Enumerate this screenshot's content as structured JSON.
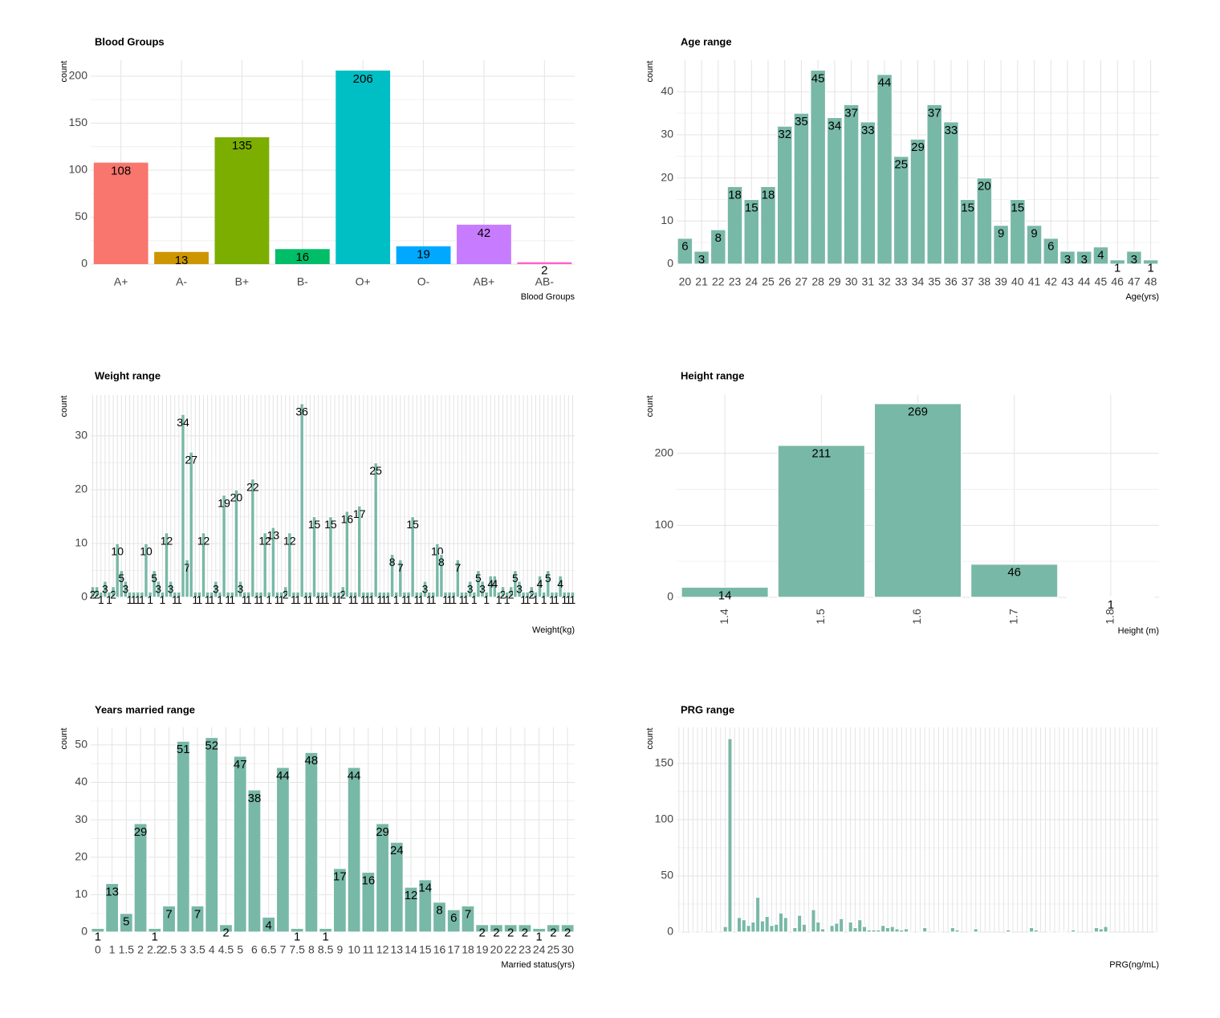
{
  "chart_data": [
    {
      "type": "bar",
      "title": "Blood Groups",
      "x_label": "Blood Groups",
      "y_label": "count",
      "categories": [
        "A+",
        "A-",
        "B+",
        "B-",
        "O+",
        "O-",
        "AB+",
        "AB-"
      ],
      "values": [
        108,
        13,
        135,
        16,
        206,
        19,
        42,
        2
      ],
      "colors": [
        "#F8766D",
        "#CD9600",
        "#7CAE00",
        "#00BE67",
        "#00BFC4",
        "#00A9FF",
        "#C77CFF",
        "#FF61CC"
      ],
      "ylim": [
        0,
        217
      ],
      "yticks": [
        0,
        50,
        100,
        150,
        200
      ],
      "grid": true
    },
    {
      "type": "bar",
      "title": "Age range",
      "x_label": "Age(yrs)",
      "y_label": "count",
      "categories": [
        "20",
        "21",
        "22",
        "23",
        "24",
        "25",
        "26",
        "27",
        "28",
        "29",
        "30",
        "31",
        "32",
        "33",
        "34",
        "35",
        "36",
        "37",
        "38",
        "39",
        "40",
        "41",
        "42",
        "43",
        "44",
        "45",
        "46",
        "47",
        "48"
      ],
      "values": [
        6,
        3,
        8,
        18,
        15,
        18,
        32,
        35,
        45,
        34,
        37,
        33,
        44,
        25,
        29,
        37,
        33,
        15,
        20,
        9,
        15,
        9,
        6,
        3,
        3,
        4,
        1,
        3,
        1
      ],
      "color": "#78B8A6",
      "ylim": [
        0,
        47.3
      ],
      "yticks": [
        0,
        10,
        20,
        30,
        40
      ],
      "grid": true
    },
    {
      "type": "bar",
      "title": "Weight range",
      "x_label": "Weight(kg)",
      "y_label": "count",
      "categories": [
        null,
        null,
        null,
        null,
        null,
        null,
        null,
        null,
        null,
        null,
        null,
        null,
        null,
        null,
        null,
        null,
        null,
        null,
        null,
        null,
        null,
        null,
        null,
        null,
        null,
        null,
        null,
        null,
        null,
        null,
        null,
        null,
        null,
        null,
        null,
        null,
        null,
        null,
        null,
        null,
        null,
        null,
        null,
        null,
        null,
        null,
        null,
        null,
        null,
        null,
        null,
        null,
        null,
        null,
        null,
        null,
        null,
        null,
        null,
        null,
        null,
        null,
        null,
        null,
        null,
        null,
        null,
        null,
        null,
        null,
        null,
        null,
        null,
        null,
        null,
        null,
        null,
        null,
        null,
        null,
        null,
        null,
        null,
        null,
        null,
        null,
        null,
        null,
        null,
        null,
        null,
        null,
        null,
        null,
        null,
        null,
        null,
        null,
        null,
        null,
        null,
        null,
        null,
        null,
        null,
        null,
        null,
        null,
        null,
        null,
        null,
        null,
        null,
        null,
        null,
        null,
        null,
        null
      ],
      "values": [
        2,
        2,
        1,
        3,
        1,
        2,
        10,
        5,
        3,
        1,
        1,
        1,
        1,
        10,
        1,
        5,
        3,
        1,
        12,
        3,
        1,
        1,
        34,
        7,
        27,
        1,
        1,
        12,
        1,
        1,
        3,
        1,
        19,
        1,
        1,
        20,
        3,
        1,
        1,
        22,
        1,
        1,
        12,
        1,
        13,
        1,
        1,
        2,
        12,
        1,
        1,
        36,
        1,
        1,
        15,
        1,
        1,
        1,
        15,
        1,
        1,
        2,
        16,
        1,
        1,
        17,
        1,
        1,
        1,
        25,
        1,
        1,
        1,
        8,
        1,
        7,
        1,
        1,
        15,
        1,
        1,
        3,
        1,
        1,
        10,
        8,
        1,
        1,
        1,
        7,
        1,
        1,
        3,
        1,
        5,
        3,
        1,
        4,
        4,
        1,
        2,
        1,
        2,
        5,
        3,
        1,
        1,
        2,
        1,
        4,
        1,
        5,
        1,
        1,
        4,
        1,
        1,
        1
      ],
      "color": "#78B8A6",
      "ylim": [
        0,
        37.6
      ],
      "yticks": [
        0,
        10,
        20,
        30
      ],
      "grid": true
    },
    {
      "type": "bar",
      "title": "Height range",
      "x_label": "Height (m)",
      "y_label": "count",
      "categories": [
        "1.4",
        "1.5",
        "1.6",
        "1.7",
        "1.8"
      ],
      "values": [
        14,
        211,
        269,
        46,
        1
      ],
      "color": "#78B8A6",
      "ylim": [
        0,
        281
      ],
      "yticks": [
        0,
        100,
        200
      ],
      "grid": true,
      "xtick_rotation": -90
    },
    {
      "type": "bar",
      "title": "Years married range",
      "x_label": "Married status(yrs)",
      "y_label": "count",
      "categories": [
        "0",
        "1",
        "1.5",
        "2",
        "2.2",
        "2.5",
        "3",
        "3.5",
        "4",
        "4.5",
        "5",
        "6",
        "6.5",
        "7",
        "7.5",
        "8",
        "8.5",
        "9",
        "10",
        "11",
        "12",
        "13",
        "14",
        "15",
        "16",
        "17",
        "18",
        "19",
        "20",
        "22",
        "23",
        "24",
        "25",
        "30"
      ],
      "values": [
        1,
        13,
        5,
        29,
        1,
        7,
        51,
        7,
        52,
        2,
        47,
        38,
        4,
        44,
        1,
        48,
        1,
        17,
        44,
        16,
        29,
        24,
        12,
        14,
        8,
        6,
        7,
        2,
        2,
        2,
        2,
        1,
        2,
        2
      ],
      "color": "#78B8A6",
      "ylim": [
        0,
        54.7
      ],
      "yticks": [
        0,
        10,
        20,
        30,
        40,
        50
      ],
      "grid": true
    },
    {
      "type": "bar",
      "title": "PRG range",
      "x_label": "PRG(ng/mL)",
      "y_label": "count",
      "categories": [
        null,
        null,
        null,
        null,
        null,
        null,
        null,
        null,
        null,
        null,
        null,
        null,
        null,
        null,
        null,
        null,
        null,
        null,
        null,
        null,
        null,
        null,
        null,
        null,
        null,
        null,
        null,
        null,
        null,
        null,
        null,
        null,
        null,
        null,
        null,
        null,
        null,
        null,
        null,
        null,
        null,
        null,
        null,
        null,
        null,
        null,
        null,
        null,
        null,
        null,
        null,
        null,
        null,
        null,
        null,
        null,
        null,
        null,
        null,
        null,
        null,
        null,
        null,
        null,
        null,
        null,
        null,
        null,
        null,
        null,
        null,
        null,
        null,
        null,
        null,
        null,
        null,
        null,
        null,
        null,
        null,
        null,
        null,
        null,
        null,
        null,
        null,
        null,
        null,
        null,
        null,
        null,
        null,
        null,
        null,
        null,
        null,
        null,
        null,
        null,
        null,
        null,
        null,
        null
      ],
      "values": [
        1,
        0,
        0,
        1,
        0,
        1,
        0,
        0,
        1,
        0,
        5,
        172,
        0,
        13,
        11,
        6,
        9,
        31,
        10,
        14,
        6,
        7,
        17,
        13,
        0,
        4,
        15,
        7,
        0,
        20,
        9,
        3,
        1,
        6,
        8,
        12,
        0,
        9,
        4,
        11,
        5,
        2,
        2,
        2,
        6,
        4,
        5,
        3,
        2,
        3,
        1,
        0,
        1,
        4,
        0,
        0,
        1,
        0,
        0,
        4,
        2,
        0,
        0,
        1,
        3,
        0,
        0,
        0,
        0,
        0,
        0,
        2,
        0,
        0,
        0,
        0,
        4,
        2,
        0,
        0,
        1,
        0,
        1,
        1,
        0,
        2,
        0,
        0,
        0,
        0,
        4,
        3,
        5,
        0,
        0,
        0,
        0,
        0,
        0,
        0,
        0,
        0,
        0,
        1
      ],
      "color": "#78B8A6",
      "ylim": [
        0,
        182
      ],
      "yticks": [
        0,
        50,
        100,
        150
      ],
      "grid": true,
      "value_labels_hidden": true
    }
  ]
}
